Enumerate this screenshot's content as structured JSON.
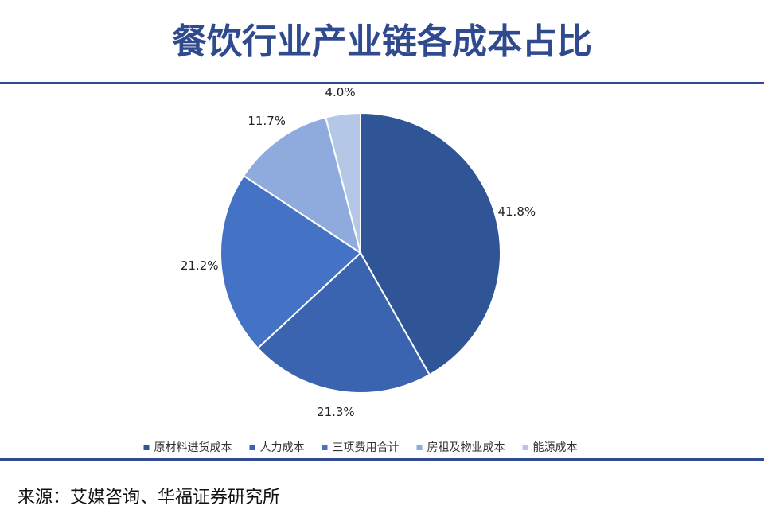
{
  "chart_data": {
    "type": "pie",
    "title": "餐饮行业产业链各成本占比",
    "categories": [
      "原材料进货成本",
      "人力成本",
      "三项费用合计",
      "房租及物业成本",
      "能源成本"
    ],
    "values": [
      41.8,
      21.3,
      21.2,
      11.7,
      4.0
    ],
    "value_labels": [
      "41.8%",
      "21.3%",
      "21.2%",
      "11.7%",
      "4.0%"
    ],
    "colors": [
      "#2f5597",
      "#3a63b0",
      "#4472c4",
      "#8faadc",
      "#b4c7e7"
    ],
    "source": "来源：艾媒咨询、华福证券研究所"
  }
}
